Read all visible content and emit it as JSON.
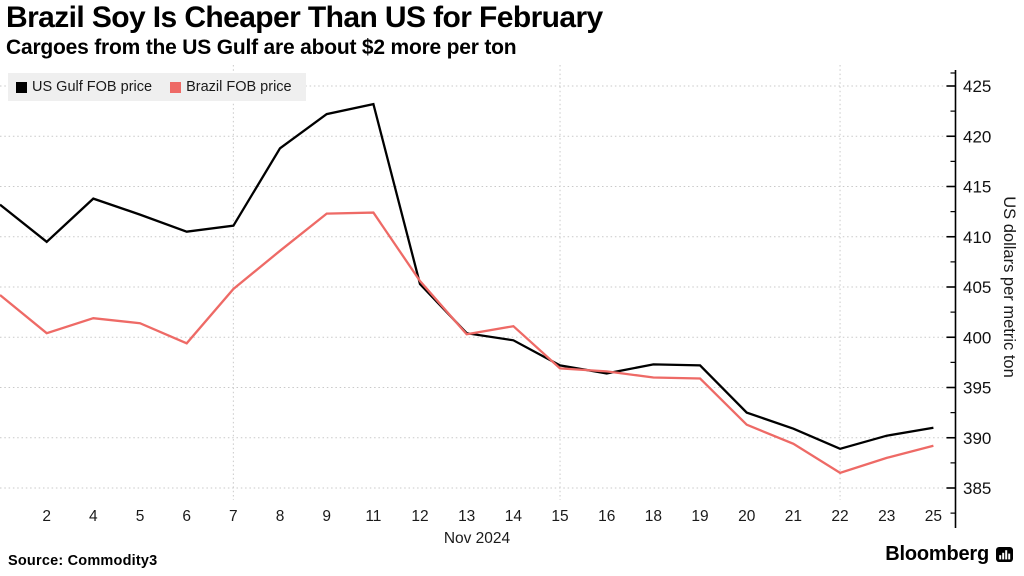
{
  "header": {
    "title": "Brazil Soy Is Cheaper Than US for February",
    "subtitle": "Cargoes from the US Gulf are about $2 more per ton"
  },
  "legend": {
    "items": [
      {
        "label": "US Gulf FOB price",
        "color": "#000000"
      },
      {
        "label": "Brazil FOB price",
        "color": "#ee6a66"
      }
    ]
  },
  "chart_data": {
    "type": "line",
    "title": "Brazil Soy Is Cheaper Than US for February",
    "subtitle": "Cargoes from the US Gulf are about $2 more per ton",
    "x_month": "Nov 2024",
    "x": [
      1,
      2,
      4,
      5,
      6,
      7,
      8,
      9,
      11,
      12,
      13,
      14,
      15,
      16,
      18,
      19,
      20,
      21,
      22,
      23,
      25
    ],
    "x_tick_labels": [
      "2",
      "4",
      "5",
      "6",
      "7",
      "8",
      "9",
      "11",
      "12",
      "13",
      "14",
      "15",
      "16",
      "18",
      "19",
      "20",
      "21",
      "22",
      "23",
      "25"
    ],
    "x_axis_label": "Nov 2024",
    "series": [
      {
        "name": "US Gulf FOB price",
        "color": "#000000",
        "values": [
          413.2,
          409.5,
          413.8,
          412.2,
          410.5,
          411.1,
          418.8,
          422.2,
          423.2,
          405.3,
          400.4,
          399.7,
          397.2,
          396.4,
          397.3,
          397.2,
          392.5,
          390.9,
          388.9,
          390.2,
          391.0
        ]
      },
      {
        "name": "Brazil FOB price",
        "color": "#ee6a66",
        "values": [
          404.2,
          400.4,
          401.9,
          401.4,
          399.4,
          404.8,
          408.6,
          412.3,
          412.4,
          405.6,
          400.3,
          401.1,
          396.9,
          396.6,
          396.0,
          395.9,
          391.3,
          389.4,
          386.5,
          388.0,
          389.2
        ]
      }
    ],
    "ylabel": "US dollars per metric ton",
    "ylim": [
      383,
      427
    ],
    "y_ticks": [
      425,
      420,
      415,
      410,
      405,
      400,
      395,
      390,
      385
    ],
    "grid": {
      "horizontal_dotted": true,
      "vertical_dotted_at_days": [
        7,
        15,
        22
      ]
    },
    "legend_position": "top-left",
    "y_axis_side": "right"
  },
  "footer": {
    "source": "Source: Commodity3",
    "brand": "Bloomberg",
    "brand_icon": "bar-chart-bubble-icon"
  }
}
